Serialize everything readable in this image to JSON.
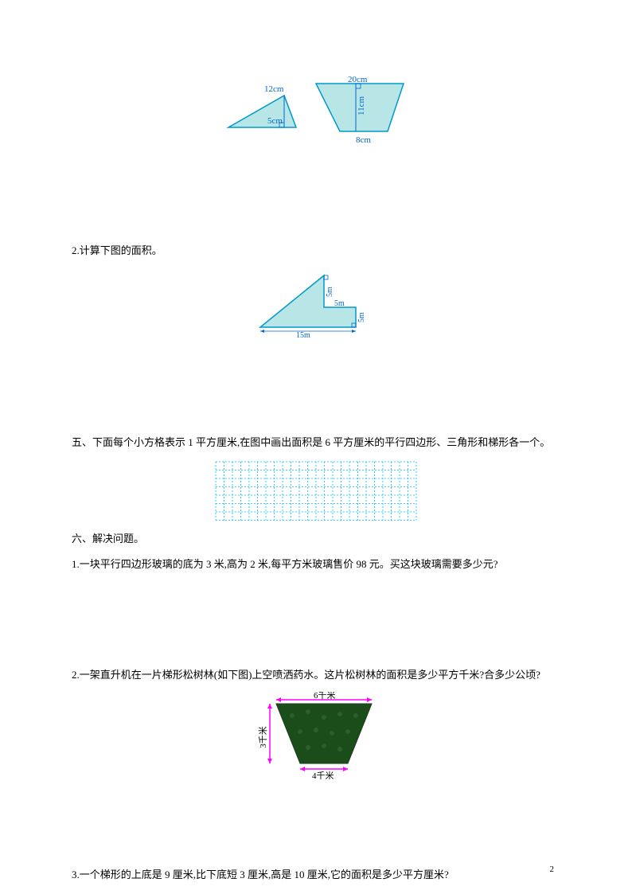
{
  "figure1": {
    "triangle": {
      "fill": "#b8e6e6",
      "stroke": "#0099cc",
      "stroke_width": 1.5,
      "label_top": "12cm",
      "label_height": "5cm",
      "label_color": "#0066cc"
    },
    "trapezoid": {
      "fill": "#b8e6e6",
      "stroke": "#0099cc",
      "stroke_width": 1.5,
      "label_top": "20cm",
      "label_height": "11cm",
      "label_bottom": "8cm",
      "label_color": "#0066cc"
    }
  },
  "q2": {
    "text": "2.计算下图的面积。",
    "figure": {
      "fill": "#b8e6e6",
      "stroke": "#0099cc",
      "stroke_width": 1.5,
      "label_v1": "5m",
      "label_h1": "5m",
      "label_v2": "5m",
      "label_bottom": "15m",
      "label_color": "#0066cc"
    }
  },
  "section5": {
    "text": "五、下面每个小方格表示 1 平方厘米,在图中画出面积是 6 平方厘米的平行四边形、三角形和梯形各一个。",
    "grid": {
      "cols": 24,
      "rows": 7,
      "cell_size": 10.5,
      "stroke": "#00bfff",
      "stroke_width": 0.8
    }
  },
  "section6": {
    "title": "六、解决问题。",
    "q1": "1.一块平行四边形玻璃的底为 3 米,高为 2 米,每平方米玻璃售价 98 元。买这块玻璃需要多少元?",
    "q2": "2.一架直升机在一片梯形松树林(如下图)上空喷洒药水。这片松树林的面积是多少平方千米?合多少公顷?",
    "q2_figure": {
      "top_label": "6千米",
      "left_label": "3千米",
      "bottom_label": "4千米",
      "arrow_color": "#ff00ff",
      "fill": "#1a3d1a"
    },
    "q3": "3.一个梯形的上底是 9 厘米,比下底短 3 厘米,高是 10 厘米,它的面积是多少平方厘米?"
  },
  "page_number": "2"
}
